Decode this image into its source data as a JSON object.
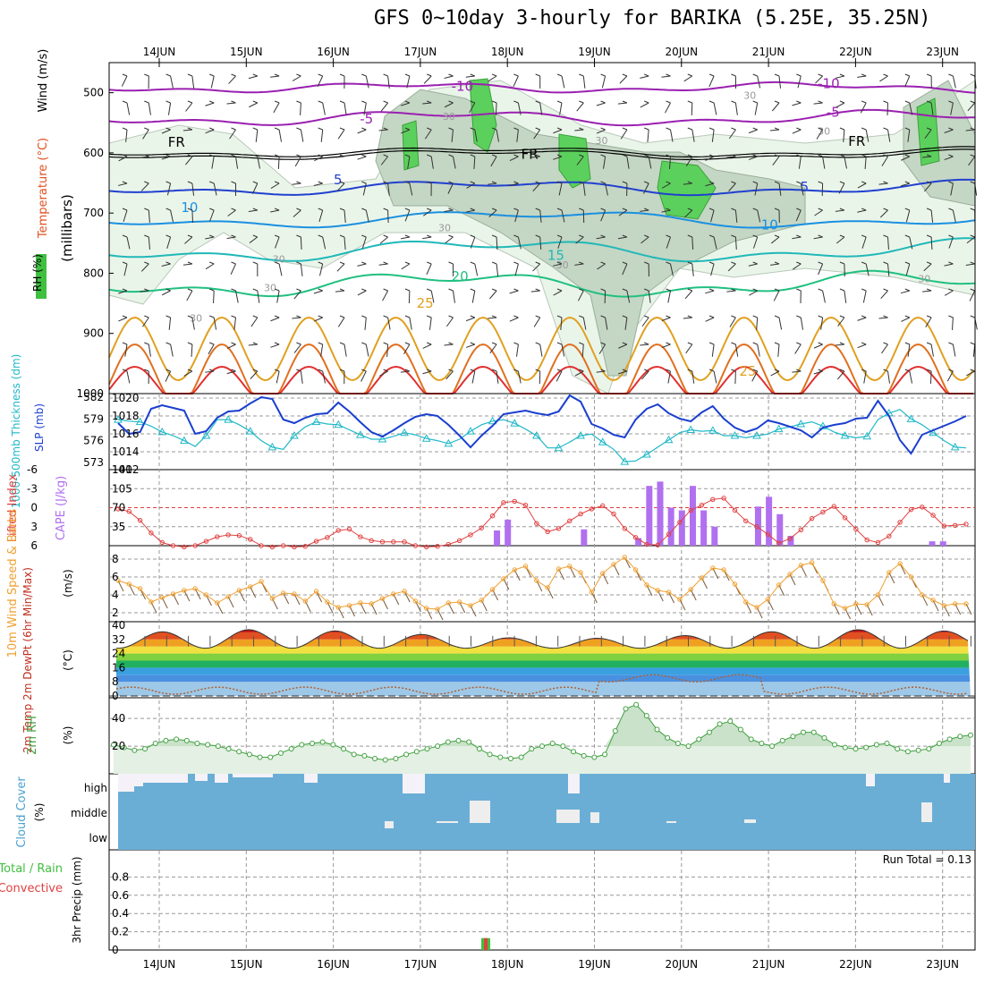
{
  "title": "GFS 0~10day 3-hourly for BARIKA (5.25E, 35.25N)",
  "colors": {
    "temp": "#e05020",
    "wind": "#000000",
    "rh_green": "#50d050",
    "slp": "#1a3fd0",
    "thickness": "#20b8c8",
    "cape": "#b070f0",
    "li": "#e04040",
    "wind10": "#f0a030",
    "rh2m": "#40a040",
    "cloud": "#6aaed6",
    "precip_total": "#40c040",
    "precip_conv": "#e04040"
  },
  "date_labels": [
    "14JUN",
    "15JUN",
    "16JUN",
    "17JUN",
    "18JUN",
    "19JUN",
    "20JUN",
    "21JUN",
    "22JUN",
    "23JUN"
  ],
  "panels": {
    "upper": {
      "ylabel_wind": "Wind (m/s)",
      "ylabel_temp": "Temperature (°C)",
      "ylabel_rh": "RH (%)",
      "ylabel_mb": "(millibars)",
      "y_ticks": [
        "500",
        "600",
        "700",
        "800",
        "900",
        "1000"
      ],
      "contour_labels": [
        {
          "text": "-10",
          "day": 3.35,
          "p": 497
        },
        {
          "text": "-10",
          "day": 7.55,
          "p": 492
        },
        {
          "text": "-5",
          "day": 2.3,
          "p": 551
        },
        {
          "text": "-5",
          "day": 7.65,
          "p": 540
        },
        {
          "text": "FR",
          "day": 0.1,
          "p": 590
        },
        {
          "text": "FR",
          "day": 4.15,
          "p": 610
        },
        {
          "text": "FR",
          "day": 7.9,
          "p": 588
        },
        {
          "text": "5",
          "day": 2.0,
          "p": 652
        },
        {
          "text": "5",
          "day": 7.35,
          "p": 664
        },
        {
          "text": "10",
          "day": 0.25,
          "p": 698
        },
        {
          "text": "10",
          "day": 6.9,
          "p": 727
        },
        {
          "text": "15",
          "day": 4.45,
          "p": 778
        },
        {
          "text": "20",
          "day": 3.35,
          "p": 813
        },
        {
          "text": "25",
          "day": 2.95,
          "p": 857
        },
        {
          "text": "25",
          "day": 6.65,
          "p": 970
        },
        {
          "text": "30",
          "day": 3.25,
          "p": 545
        },
        {
          "text": "30",
          "day": 5.0,
          "p": 585
        },
        {
          "text": "30",
          "day": 6.7,
          "p": 510
        },
        {
          "text": "30",
          "day": 7.55,
          "p": 570
        },
        {
          "text": "30",
          "day": 1.3,
          "p": 782
        },
        {
          "text": "30",
          "day": 1.2,
          "p": 830
        },
        {
          "text": "30",
          "day": 0.35,
          "p": 880
        },
        {
          "text": "30",
          "day": 3.2,
          "p": 730
        },
        {
          "text": "30",
          "day": 4.55,
          "p": 792
        },
        {
          "text": "30",
          "day": 8.7,
          "p": 815
        }
      ]
    },
    "slp_thick": {
      "ylabel_thick": "1000-500mb Thickness (dm)",
      "ylabel_slp": "SLP (mb)",
      "left_ticks": [
        "582",
        "579",
        "576",
        "573"
      ],
      "right_ticks": [
        "1020",
        "1018",
        "1016",
        "1014",
        "1012"
      ]
    },
    "cape_li": {
      "ylabel_li": "Lifted Index",
      "ylabel_cape": "CAPE (J/kg)",
      "left_ticks": [
        "-6",
        "-3",
        "0",
        "3",
        "6"
      ],
      "right_ticks": [
        "140",
        "105",
        "70",
        "35"
      ]
    },
    "wind10": {
      "ylabel": "10m Wind Speed & Barbs",
      "unit": "(m/s)",
      "ticks": [
        "8",
        "6",
        "4",
        "2"
      ]
    },
    "temp2m": {
      "ylabel": "2m Temp 2m DewPt (6hr Min/Max)",
      "unit": "(°C)",
      "ticks": [
        "40",
        "32",
        "24",
        "16",
        "8",
        "0"
      ]
    },
    "rh2m": {
      "ylabel": "2m RH",
      "unit": "(%)",
      "ticks": [
        "40",
        "20"
      ]
    },
    "cloud": {
      "ylabel": "Cloud Cover",
      "unit": "(%)",
      "levels": [
        "high",
        "middle",
        "low"
      ]
    },
    "precip": {
      "ylabel_total": "Total / Rain",
      "ylabel_conv": "Convective",
      "ylabel": "3hr Precip (mm)",
      "ticks": [
        "0.8",
        "0.6",
        "0.4",
        "0.2",
        "0"
      ],
      "run_total": "Run Total = 0.13"
    }
  },
  "chart_data": [
    {
      "type": "line",
      "name_ref": "upper-air temperature contours",
      "x_unit": "days from start (0 = 13JUN 12Z approx.)",
      "temperature_contours_C": [
        -10,
        -5,
        0,
        5,
        10,
        15,
        20,
        25,
        30
      ],
      "pressure_axis_mb": [
        450,
        1000
      ],
      "rh_shading_percent": [
        50,
        70,
        90
      ]
    },
    {
      "type": "line",
      "x": [
        0,
        0.125,
        0.25,
        0.375,
        0.5,
        0.625,
        0.75,
        0.875,
        1,
        1.125,
        1.25,
        1.375,
        1.5,
        1.625,
        1.75,
        1.875,
        2,
        2.125,
        2.25,
        2.375,
        2.5,
        2.625,
        2.75,
        2.875,
        3,
        3.125,
        3.25,
        3.375,
        3.5,
        3.625,
        3.75,
        3.875,
        4,
        4.125,
        4.25,
        4.375,
        4.5,
        4.625,
        4.75,
        4.875,
        5,
        5.125,
        5.25,
        5.375,
        5.5,
        5.625,
        5.75,
        5.875,
        6,
        6.125,
        6.25,
        6.375,
        6.5,
        6.625,
        6.75,
        6.875,
        7,
        7.125,
        7.25,
        7.375,
        7.5,
        7.625,
        7.75,
        7.875,
        8,
        8.125,
        8.25,
        8.375,
        8.5,
        8.625,
        8.75,
        8.875,
        9,
        9.125,
        9.25,
        9.375,
        9.5,
        9.625
      ],
      "series": [
        {
          "name": "SLP (mb)",
          "values": [
            1017.2,
            1016.0,
            1016.2,
            1018.8,
            1019.2,
            1018.9,
            1018.6,
            1016.0,
            1016.3,
            1017.8,
            1018.5,
            1018.6,
            1019.4,
            1020.1,
            1019.9,
            1017.6,
            1017.2,
            1017.8,
            1018.2,
            1018.3,
            1019.5,
            1018.5,
            1017.3,
            1016.2,
            1015.7,
            1016.4,
            1017.2,
            1017.9,
            1018.2,
            1018.0,
            1017.0,
            1015.8,
            1014.5,
            1015.8,
            1016.9,
            1018.2,
            1018.4,
            1018.6,
            1018.3,
            1018.1,
            1018.5,
            1020.3,
            1019.6,
            1017.1,
            1016.6,
            1015.9,
            1015.6,
            1017.6,
            1018.8,
            1019.3,
            1018.3,
            1017.7,
            1017.4,
            1018.4,
            1019.1,
            1017.7,
            1016.7,
            1016.2,
            1016.6,
            1017.5,
            1017.2,
            1016.8,
            1016.4,
            1015.6,
            1016.7,
            1017.0,
            1017.2,
            1017.7,
            1017.8,
            1019.7,
            1018.0,
            1015.3,
            1013.8,
            1015.9,
            1016.4,
            1016.9,
            1017.4,
            1018.0
          ]
        },
        {
          "name": "1000-500mb Thickness (dm)",
          "values": [
            578.9,
            578.7,
            578.6,
            578.0,
            577.2,
            576.7,
            576.0,
            575.2,
            576.7,
            578.9,
            578.9,
            578.2,
            577.3,
            576.0,
            575.1,
            574.8,
            576.7,
            577.9,
            578.6,
            578.3,
            578.2,
            577.5,
            576.8,
            576.2,
            576.2,
            576.6,
            577.1,
            576.8,
            576.3,
            576.0,
            575.6,
            576.2,
            577.3,
            578.2,
            578.7,
            578.9,
            578.4,
            577.6,
            576.7,
            575.0,
            575.0,
            575.8,
            576.7,
            576.9,
            575.8,
            574.8,
            573.1,
            573.2,
            574.1,
            575.1,
            576.1,
            577.1,
            577.5,
            577.3,
            577.4,
            576.7,
            576.7,
            576.4,
            576.7,
            576.9,
            577.6,
            577.9,
            578.3,
            578.6,
            578.0,
            577.2,
            576.7,
            576.4,
            576.6,
            578.9,
            579.8,
            580.3,
            579.0,
            578.2,
            577.1,
            576.0,
            575.1,
            575.0
          ]
        }
      ]
    },
    {
      "type": "bar",
      "x_days": [
        4.0,
        4.125,
        5.0,
        5.625,
        5.75,
        5.875,
        6.0,
        6.125,
        6.25,
        6.375,
        6.5,
        7.0,
        7.125,
        7.25,
        7.375,
        9.0,
        9.125
      ],
      "series": [
        {
          "name": "CAPE (J/kg)",
          "values": [
            28,
            48,
            30,
            14,
            110,
            118,
            70,
            65,
            110,
            65,
            35,
            72,
            90,
            58,
            18,
            8,
            8
          ]
        },
        {
          "name": "Lifted Index",
          "values_note": "line, range -6 to 6"
        }
      ],
      "li_values": [
        0.2,
        0.6,
        2.0,
        4.0,
        5.5,
        6.0,
        6.2,
        6.0,
        5.3,
        4.6,
        4.3,
        4.4,
        5.0,
        6.0,
        6.2,
        6.0,
        6.2,
        6.1,
        5.3,
        4.7,
        3.6,
        3.4,
        4.6,
        5.2,
        5.4,
        5.4,
        5.4,
        6.0,
        6.2,
        6.1,
        5.8,
        5.2,
        4.3,
        3.2,
        1.3,
        -0.8,
        -1.0,
        -0.4,
        2.5,
        3.8,
        3.3,
        2.1,
        1.0,
        0.2,
        -0.3,
        1.0,
        3.3,
        4.7,
        5.8,
        5.9,
        4.2,
        2.3,
        0.4,
        -0.4,
        -1.3,
        -1.5,
        0.4,
        2.1,
        3.0,
        4.2,
        5.6,
        4.9,
        3.5,
        1.7,
        0.7,
        -0.2,
        1.6,
        3.4,
        5.1,
        5.5,
        4.5,
        2.3,
        0.3,
        -0.1,
        1.2,
        2.9,
        2.8,
        2.6
      ]
    },
    {
      "type": "line",
      "series": [
        {
          "name": "10m Wind Speed (m/s)",
          "values": [
            5.6,
            5.2,
            4.7,
            3.2,
            3.7,
            4.1,
            4.5,
            4.7,
            4.0,
            3.1,
            3.8,
            4.5,
            4.9,
            5.5,
            3.6,
            4.2,
            4.1,
            3.3,
            4.4,
            3.2,
            2.6,
            2.8,
            3.1,
            3.0,
            3.6,
            4.1,
            4.4,
            3.3,
            2.5,
            2.4,
            3.1,
            3.2,
            2.8,
            3.4,
            4.6,
            5.8,
            6.8,
            7.2,
            5.6,
            4.8,
            6.9,
            7.2,
            6.5,
            4.3,
            6.4,
            7.4,
            8.2,
            6.8,
            5.1,
            4.5,
            4.3,
            3.5,
            4.6,
            5.9,
            7.0,
            6.8,
            5.2,
            3.2,
            2.6,
            3.5,
            5.1,
            6.3,
            7.3,
            7.6,
            5.6,
            3.0,
            2.5,
            3.0,
            2.9,
            4.0,
            6.5,
            7.5,
            6.0,
            4.0,
            3.4,
            2.8,
            3.0,
            3.0
          ]
        }
      ]
    },
    {
      "type": "area",
      "series": [
        {
          "name": "2m Temp (°C)",
          "range": [
            26,
            40
          ]
        },
        {
          "name": "2m DewPt (°C)",
          "range": [
            1,
            13
          ]
        }
      ]
    },
    {
      "type": "line",
      "series": [
        {
          "name": "2m RH (%)",
          "values": [
            21,
            19,
            17,
            18,
            22,
            24,
            25,
            24,
            22,
            21,
            20,
            18,
            16,
            14,
            12,
            12,
            15,
            18,
            21,
            22,
            23,
            21,
            18,
            14,
            13,
            11,
            10,
            11,
            14,
            16,
            18,
            20,
            23,
            24,
            23,
            18,
            14,
            12,
            11,
            12,
            18,
            20,
            22,
            20,
            16,
            13,
            12,
            14,
            31,
            47,
            50,
            42,
            32,
            26,
            22,
            20,
            25,
            30,
            36,
            38,
            32,
            25,
            22,
            20,
            24,
            27,
            30,
            30,
            26,
            21,
            19,
            18,
            19,
            21,
            22,
            18,
            16,
            17,
            18,
            22,
            25,
            27,
            28
          ]
        }
      ]
    },
    {
      "type": "bar",
      "name_ref": "cloud cover high/middle/low (%)"
    },
    {
      "type": "bar",
      "x_days": [
        4.125
      ],
      "series": [
        {
          "name": "3hr Precip (mm)",
          "values": [
            0.13
          ]
        }
      ],
      "ylim": [
        0,
        1.0
      ]
    }
  ]
}
